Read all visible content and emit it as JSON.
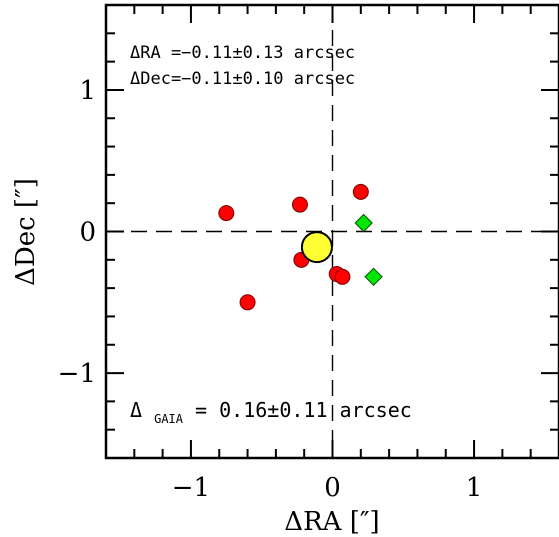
{
  "chart_data": {
    "type": "scatter",
    "title": "",
    "xlabel": "ΔRA [″]",
    "ylabel": "ΔDec [″]",
    "xlim": [
      -1.6,
      1.6
    ],
    "ylim": [
      -1.6,
      1.6
    ],
    "x_ticks": [
      {
        "value": -1,
        "label": "−1"
      },
      {
        "value": 0,
        "label": "0"
      },
      {
        "value": 1,
        "label": "1"
      }
    ],
    "y_ticks": [
      {
        "value": -1,
        "label": "−1"
      },
      {
        "value": 0,
        "label": "0"
      },
      {
        "value": 1,
        "label": "1"
      }
    ],
    "grid": false,
    "reference_lines": {
      "x": 0,
      "y": 0,
      "style": "dashed"
    },
    "series": [
      {
        "marker": "circle",
        "color": "#ff0000",
        "points": [
          {
            "x": -0.75,
            "y": 0.13
          },
          {
            "x": -0.23,
            "y": 0.19
          },
          {
            "x": 0.2,
            "y": 0.28
          },
          {
            "x": -0.22,
            "y": -0.2
          },
          {
            "x": -0.6,
            "y": -0.5
          },
          {
            "x": 0.03,
            "y": -0.3
          },
          {
            "x": 0.07,
            "y": -0.32
          }
        ]
      },
      {
        "marker": "diamond",
        "color": "#00e600",
        "points": [
          {
            "x": 0.22,
            "y": 0.06
          },
          {
            "x": 0.29,
            "y": -0.32
          }
        ]
      },
      {
        "marker": "circle-large",
        "color": "#ffff33",
        "points": [
          {
            "x": -0.11,
            "y": -0.11
          }
        ]
      }
    ],
    "annotations": {
      "ra": "ΔRA =−0.11±0.13 arcsec",
      "dec": "ΔDec=−0.11±0.10 arcsec",
      "gaia_prefix": "Δ",
      "gaia_sub": "GAIA",
      "gaia_value": " =  0.16±0.11 arcsec"
    }
  }
}
